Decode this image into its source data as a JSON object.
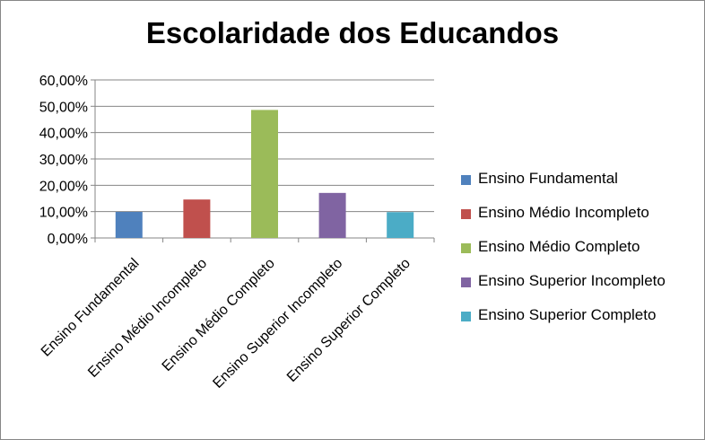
{
  "chart_data": {
    "type": "bar",
    "title": "Escolaridade dos Educandos",
    "categories": [
      "Ensino Fundamental",
      "Ensino Médio Incompleto",
      "Ensino Médio Completo",
      "Ensino Superior Incompleto",
      "Ensino Superior Completo"
    ],
    "values": [
      9.9,
      14.6,
      48.6,
      17.1,
      9.8
    ],
    "colors": [
      "#4F81BD",
      "#C0504D",
      "#9BBB59",
      "#8064A2",
      "#4BACC6"
    ],
    "yticks": [
      "0,00%",
      "10,00%",
      "20,00%",
      "30,00%",
      "40,00%",
      "50,00%",
      "60,00%"
    ],
    "ylim": [
      0,
      60
    ],
    "grid": true,
    "legend_position": "right"
  }
}
